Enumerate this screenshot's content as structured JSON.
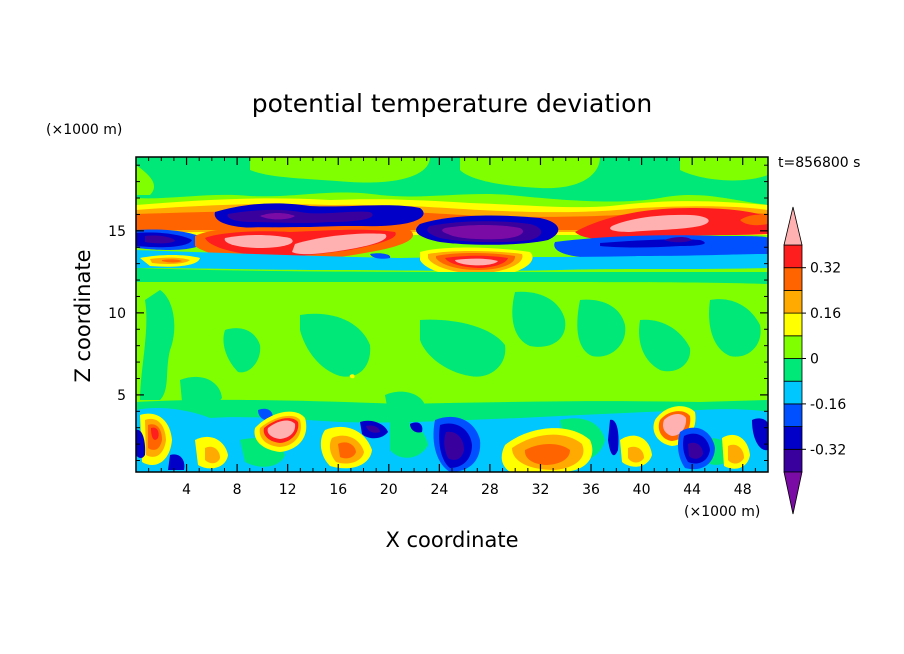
{
  "chart_data": {
    "type": "heatmap",
    "title": "potential temperature deviation",
    "xlabel": "X coordinate",
    "ylabel": "Z coordinate",
    "x_unit": "(×1000 m)",
    "y_unit": "(×1000 m)",
    "time_label": "t=856800 s",
    "xlim": [
      0,
      50
    ],
    "ylim": [
      0.3,
      19.5
    ],
    "x_ticks": [
      "4",
      "8",
      "12",
      "16",
      "20",
      "24",
      "28",
      "32",
      "36",
      "40",
      "44",
      "48"
    ],
    "x_tick_values": [
      4,
      8,
      12,
      16,
      20,
      24,
      28,
      32,
      36,
      40,
      44,
      48
    ],
    "y_ticks": [
      "5",
      "10",
      "15"
    ],
    "y_tick_values": [
      5,
      10,
      15
    ],
    "colorbar": {
      "levels": [
        -0.48,
        -0.4,
        -0.32,
        -0.24,
        -0.16,
        -0.08,
        0,
        0.08,
        0.16,
        0.24,
        0.32,
        0.4
      ],
      "colors": [
        "#7a0ca5",
        "#3a009e",
        "#0000c8",
        "#0050ff",
        "#00c8ff",
        "#00e878",
        "#7fff00",
        "#ffff00",
        "#ffaa00",
        "#ff6400",
        "#ff1e1e",
        "#ffb0b0"
      ],
      "labels": [
        "0.32",
        "0.16",
        "0",
        "-0.16",
        "-0.32"
      ],
      "label_values": [
        0.32,
        0.16,
        0,
        -0.16,
        -0.32
      ]
    },
    "features": [
      {
        "region": "background lower/mid troposphere",
        "x": [
          0,
          50
        ],
        "z": [
          3.5,
          12.5
        ],
        "value": 0.02
      },
      {
        "region": "upper layer",
        "x": [
          0,
          50
        ],
        "z": [
          17,
          19.5
        ],
        "value": 0.02
      },
      {
        "region": "cold band",
        "x": [
          0,
          50
        ],
        "z": [
          12.8,
          13.4
        ],
        "value": -0.14
      },
      {
        "region": "warm tongue",
        "x": [
          1,
          14
        ],
        "z": [
          13,
          13.6
        ],
        "value": 0.18
      },
      {
        "region": "cold core",
        "x": [
          6,
          15
        ],
        "z": [
          15.6,
          16.6
        ],
        "value": -0.38
      },
      {
        "region": "warm core",
        "x": [
          7,
          22
        ],
        "z": [
          13.8,
          15.1
        ],
        "value": 0.42
      },
      {
        "region": "cold core",
        "x": [
          23,
          33
        ],
        "z": [
          14.5,
          16
        ],
        "value": -0.45
      },
      {
        "region": "warm core",
        "x": [
          24,
          31
        ],
        "z": [
          12.8,
          14
        ],
        "value": 0.4
      },
      {
        "region": "cold band",
        "x": [
          34,
          50
        ],
        "z": [
          13.5,
          14.8
        ],
        "value": -0.3
      },
      {
        "region": "warm core",
        "x": [
          36,
          47
        ],
        "z": [
          15,
          16.5
        ],
        "value": 0.42
      },
      {
        "region": "warm core surface",
        "x": [
          9,
          14
        ],
        "z": [
          1.5,
          4
        ],
        "value": 0.44
      },
      {
        "region": "warm core surface",
        "x": [
          40,
          44
        ],
        "z": [
          2,
          4
        ],
        "value": 0.44
      },
      {
        "region": "cold core surface",
        "x": [
          24,
          27
        ],
        "z": [
          0.4,
          3
        ],
        "value": -0.42
      },
      {
        "region": "warm surface",
        "x": [
          29,
          35
        ],
        "z": [
          0.4,
          3
        ],
        "value": 0.3
      }
    ]
  }
}
